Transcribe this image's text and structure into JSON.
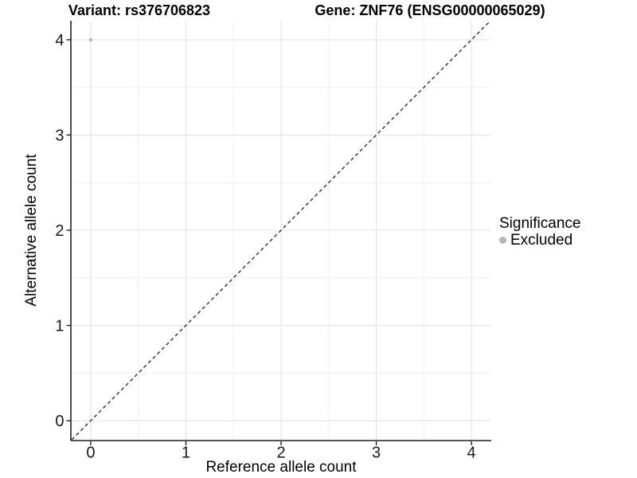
{
  "titles": {
    "left": "Variant: rs376706823",
    "right": "Gene: ZNF76 (ENSG00000065029)"
  },
  "legend": {
    "title": "Significance",
    "items": [
      {
        "label": "Excluded",
        "color": "#b5b5b5"
      }
    ]
  },
  "chart_data": {
    "type": "scatter",
    "title": "Variant: rs376706823 / Gene: ZNF76 (ENSG00000065029)",
    "xlabel": "Reference allele count",
    "ylabel": "Alternative allele count",
    "xlim": [
      -0.2,
      4.2
    ],
    "ylim": [
      -0.2,
      4.2
    ],
    "xticks": [
      0,
      1,
      2,
      3,
      4
    ],
    "yticks": [
      0,
      1,
      2,
      3,
      4
    ],
    "xminor": [
      0.5,
      1.5,
      2.5,
      3.5
    ],
    "yminor": [
      0.5,
      1.5,
      2.5,
      3.5
    ],
    "grid": true,
    "legend_position": "right",
    "series": [
      {
        "name": "Excluded",
        "color": "#b5b5b5",
        "points": [
          {
            "x": 0,
            "y": 4
          }
        ]
      }
    ],
    "reference_line": {
      "kind": "identity",
      "slope": 1,
      "intercept": 0,
      "style": "dashed",
      "color": "#111111"
    },
    "colors": {
      "grid_major": "#e3e3e3",
      "grid_minor": "#f1f1f1",
      "axis": "#1f1f1f",
      "tick_label": "#1a1a1a"
    }
  }
}
